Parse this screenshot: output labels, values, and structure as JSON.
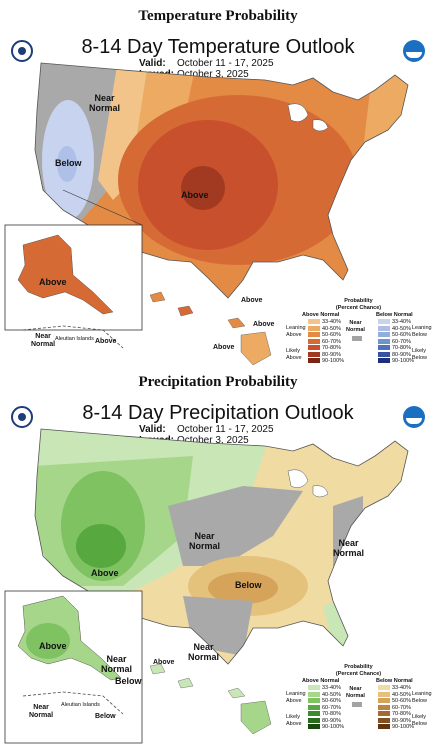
{
  "temperature": {
    "section_title": "Temperature Probability",
    "title": "8-14 Day Temperature Outlook",
    "valid_label": "Valid:",
    "valid_value": "October 11 - 17, 2025",
    "issued_label": "Issued:",
    "issued_value": "October 3, 2025",
    "labels": {
      "near_normal_nw": "Near\nNormal",
      "below": "Below",
      "above_main": "Above",
      "above_alaska": "Above",
      "near_normal_ak": "Near\nNormal",
      "aleutian": "Aleutian Islands",
      "above_ak_chain": "Above",
      "hi_above_1": "Above",
      "hi_above_2": "Above",
      "hi_above_3": "Above"
    },
    "legend": {
      "title": "Probability\n(Percent Chance)",
      "above_header": "Above Normal",
      "near_header": "Near\nNormal",
      "below_header": "Below Normal",
      "leaning_above": "Leaning\nAbove",
      "likely_above": "Likely\nAbove",
      "leaning_below": "Leaning\nBelow",
      "likely_below": "Likely\nBelow",
      "bins": [
        "33-40%",
        "40-50%",
        "50-60%",
        "60-70%",
        "70-80%",
        "80-90%",
        "90-100%"
      ],
      "above_colors": [
        "#f2c48a",
        "#ecaa62",
        "#e38a45",
        "#d66a35",
        "#c8502c",
        "#a23a22",
        "#7a2416"
      ],
      "below_colors": [
        "#c9d3ec",
        "#aebde6",
        "#8fb0dd",
        "#6d93d0",
        "#4f72c0",
        "#3451a3",
        "#1e2f7a"
      ],
      "near_color": "#a3a3a3"
    }
  },
  "precipitation": {
    "section_title": "Precipitation Probability",
    "title": "8-14 Day Precipitation Outlook",
    "valid_label": "Valid:",
    "valid_value": "October 11 - 17, 2025",
    "issued_label": "Issued:",
    "issued_value": "October 3, 2025",
    "labels": {
      "above_sw": "Above",
      "near_normal_c": "Near\nNormal",
      "below": "Below",
      "near_normal_e": "Near\nNormal",
      "near_normal_s": "Near\nNormal",
      "above_ak": "Above",
      "near_normal_ak": "Near\nNormal",
      "below_ak": "Below",
      "aleutian": "Aleutian Islands",
      "near_normal_ak2": "Near\nNormal",
      "below_ak2": "Below",
      "hi_above": "Above"
    },
    "legend": {
      "title": "Probability\n(Percent Chance)",
      "above_header": "Above Normal",
      "near_header": "Near\nNormal",
      "below_header": "Below Normal",
      "leaning_above": "Leaning\nAbove",
      "likely_above": "Likely\nAbove",
      "leaning_below": "Leaning\nBelow",
      "likely_below": "Likely\nBelow",
      "bins": [
        "33-40%",
        "40-50%",
        "50-60%",
        "60-70%",
        "70-80%",
        "80-90%",
        "90-100%"
      ],
      "above_colors": [
        "#c9e6b7",
        "#a6d68a",
        "#7fc262",
        "#56a83f",
        "#3d8a2c",
        "#2a6b1d",
        "#184a10"
      ],
      "below_colors": [
        "#f0dba3",
        "#e5c27c",
        "#d6a35a",
        "#c08340",
        "#a6692f",
        "#85501f",
        "#603512"
      ],
      "near_color": "#a3a3a3"
    }
  },
  "colors": {
    "gray": "#a9a9a9",
    "temp_below_light": "#c7d3ef",
    "temp_below_mid": "#aebfe8",
    "temp_a1": "#f2c48a",
    "temp_a2": "#ecaa62",
    "temp_a3": "#e38a45",
    "temp_a4": "#d66a35",
    "temp_a5": "#c8502c",
    "temp_a6": "#a23a22",
    "precip_a1": "#c9e6b7",
    "precip_a2": "#a6d68a",
    "precip_a3": "#7fc262",
    "precip_a4": "#56a83f",
    "precip_b1": "#f0dba3",
    "precip_b2": "#e5c27c",
    "precip_b3": "#d6a35a"
  }
}
